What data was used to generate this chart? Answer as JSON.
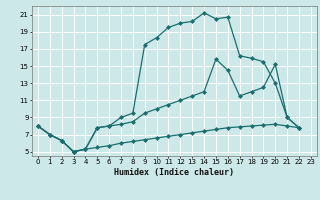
{
  "xlabel": "Humidex (Indice chaleur)",
  "bg_color": "#cce8e8",
  "grid_color": "#ffffff",
  "line_color": "#1a6e6e",
  "xlim": [
    -0.5,
    23.5
  ],
  "ylim": [
    4.5,
    22.0
  ],
  "xticks": [
    0,
    1,
    2,
    3,
    4,
    5,
    6,
    7,
    8,
    9,
    10,
    11,
    12,
    13,
    14,
    15,
    16,
    17,
    18,
    19,
    20,
    21,
    22,
    23
  ],
  "yticks": [
    5,
    7,
    9,
    11,
    13,
    15,
    17,
    19,
    21
  ],
  "curve1_x": [
    0,
    1,
    2,
    3,
    4,
    5,
    6,
    7,
    8,
    9,
    10,
    11,
    12,
    13,
    14,
    15,
    16,
    17,
    18,
    19,
    20,
    21,
    22
  ],
  "curve1_y": [
    8.0,
    7.0,
    6.3,
    5.0,
    5.3,
    7.8,
    8.0,
    9.0,
    9.5,
    17.5,
    18.3,
    19.5,
    20.0,
    20.2,
    21.2,
    20.5,
    20.7,
    16.2,
    15.9,
    15.5,
    13.0,
    9.0,
    7.8
  ],
  "curve2_x": [
    0,
    1,
    2,
    3,
    4,
    5,
    6,
    7,
    8,
    9,
    10,
    11,
    12,
    13,
    14,
    15,
    16,
    17,
    18,
    19,
    20,
    21,
    22
  ],
  "curve2_y": [
    8.0,
    7.0,
    6.3,
    5.0,
    5.3,
    7.8,
    8.0,
    8.2,
    8.5,
    9.5,
    10.0,
    10.5,
    11.0,
    11.5,
    12.0,
    15.8,
    14.5,
    11.5,
    12.0,
    12.5,
    15.2,
    9.0,
    7.8
  ],
  "curve3_x": [
    0,
    1,
    2,
    3,
    4,
    5,
    6,
    7,
    8,
    9,
    10,
    11,
    12,
    13,
    14,
    15,
    16,
    17,
    18,
    19,
    20,
    21,
    22
  ],
  "curve3_y": [
    8.0,
    7.0,
    6.3,
    5.0,
    5.3,
    5.5,
    5.7,
    6.0,
    6.2,
    6.4,
    6.6,
    6.8,
    7.0,
    7.2,
    7.4,
    7.6,
    7.8,
    7.9,
    8.0,
    8.1,
    8.2,
    8.0,
    7.8
  ]
}
